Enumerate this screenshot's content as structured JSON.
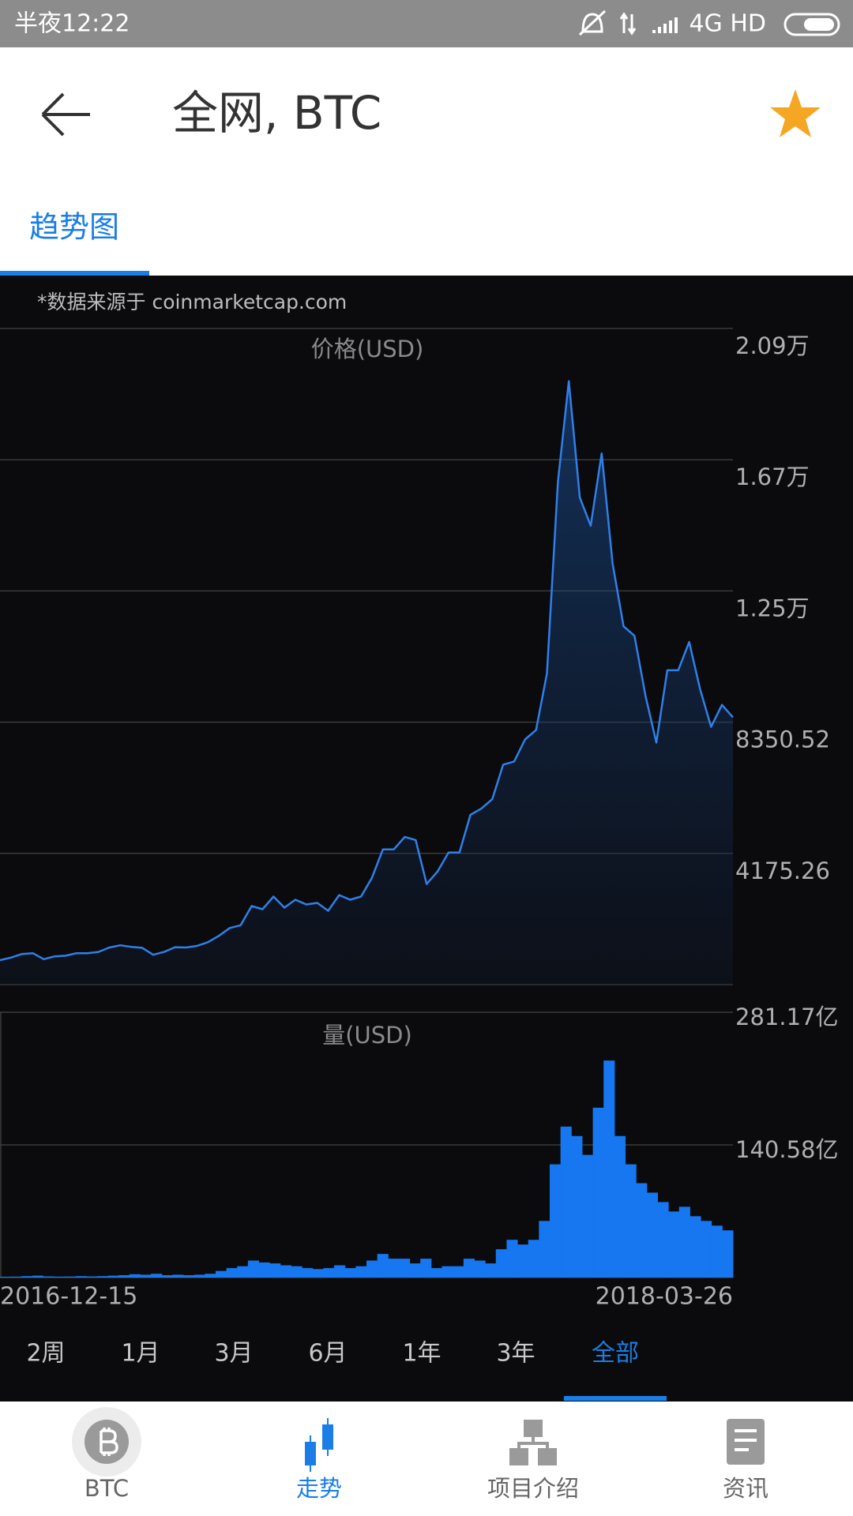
{
  "status_bar": {
    "time": "半夜12:22",
    "network": "4G HD"
  },
  "header": {
    "title": "全网, BTC"
  },
  "tabs": [
    "趋势图"
  ],
  "source_note": "*数据来源于 coinmarketcap.com",
  "chart_data": [
    {
      "type": "line",
      "title": "价格(USD)",
      "color": "#2f80ea",
      "values": [
        780,
        860,
        975,
        1000,
        810,
        900,
        920,
        1000,
        1000,
        1040,
        1180,
        1250,
        1200,
        1170,
        950,
        1040,
        1190,
        1180,
        1230,
        1350,
        1550,
        1800,
        1890,
        2500,
        2400,
        2800,
        2450,
        2700,
        2550,
        2600,
        2350,
        2850,
        2700,
        2800,
        3400,
        4300,
        4300,
        4700,
        4600,
        3200,
        3600,
        4200,
        4200,
        5400,
        5600,
        5900,
        7000,
        7100,
        7800,
        8100,
        9900,
        16000,
        19200,
        15500,
        14600,
        16900,
        13400,
        11400,
        11100,
        9200,
        7700,
        10000,
        10000,
        10900,
        9400,
        8200,
        8900,
        8500
      ],
      "ylim": [
        0,
        20876.3
      ],
      "yticks": [
        {
          "value": 20876.3,
          "label": "2.09万"
        },
        {
          "value": 16701.04,
          "label": "1.67万"
        },
        {
          "value": 12525.78,
          "label": "1.25万"
        },
        8350.52,
        4175.26
      ],
      "grid": true
    },
    {
      "type": "bar",
      "title": "量(USD)",
      "color": "#1677f0",
      "values": [
        90000000,
        100000000,
        150000000,
        200000000,
        120000000,
        100000000,
        110000000,
        150000000,
        120000000,
        150000000,
        200000000,
        250000000,
        350000000,
        300000000,
        400000000,
        250000000,
        300000000,
        250000000,
        300000000,
        400000000,
        700000000,
        1000000000,
        1200000000,
        1800000000,
        1600000000,
        1500000000,
        1300000000,
        1200000000,
        1000000000,
        900000000,
        1000000000,
        1300000000,
        1000000000,
        1200000000,
        1800000000,
        2500000000,
        2000000000,
        2000000000,
        1500000000,
        2000000000,
        1000000000,
        1200000000,
        1200000000,
        2000000000,
        1800000000,
        1500000000,
        3000000000,
        4000000000,
        3500000000,
        4000000000,
        6000000000,
        12000000000,
        16000000000,
        15000000000,
        13000000000,
        18000000000,
        23000000000,
        15000000000,
        12000000000,
        10000000000,
        9000000000,
        8000000000,
        7000000000,
        7500000000,
        6500000000,
        6000000000,
        5500000000,
        5000000000
      ],
      "ylim": [
        0,
        28117000000
      ],
      "yticks": [
        {
          "value": 28117000000,
          "label": "281.17亿"
        },
        {
          "value": 14058500000,
          "label": "140.58亿"
        }
      ],
      "grid": true
    }
  ],
  "x_labels": [
    "2016-12-15",
    "2018-03-26"
  ],
  "periods": [
    "2周",
    "1月",
    "3月",
    "6月",
    "1年",
    "3年",
    "全部"
  ],
  "active_period": 6,
  "nav": [
    "BTC",
    "走势",
    "项目介绍",
    "资讯"
  ],
  "active_nav": 1
}
